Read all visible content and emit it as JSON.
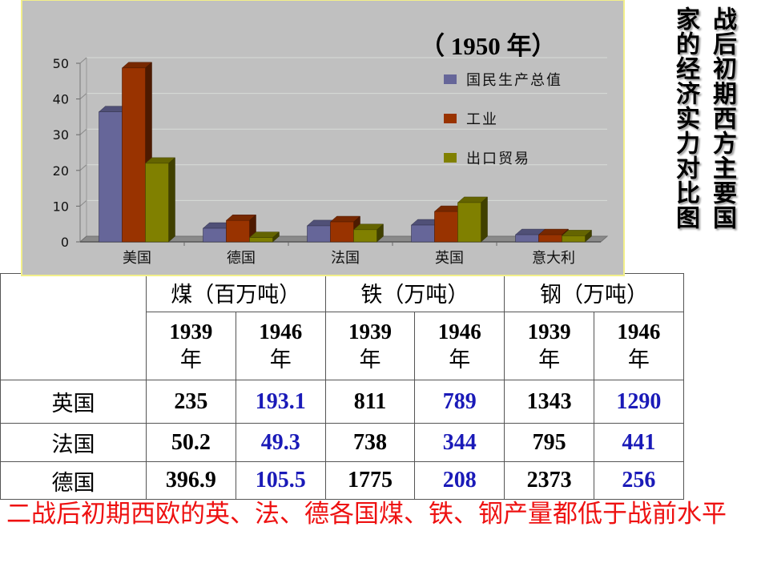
{
  "side_title": {
    "column_1": "战后初期西方主要国",
    "column_2": "家的经济实力对比图"
  },
  "chart_data": {
    "type": "bar",
    "style": "3d-clustered-column",
    "title": "战后初期西方主要国家的经济实力对比图",
    "subtitle": "（ 1950 年）",
    "categories": [
      "美国",
      "德国",
      "法国",
      "英国",
      "意大利"
    ],
    "series": [
      {
        "name": "国民生产总值",
        "color": "#666699",
        "values": [
          36.4,
          3.8,
          4.5,
          4.7,
          2.0
        ]
      },
      {
        "name": "工业",
        "color": "#993300",
        "values": [
          48.7,
          6.0,
          5.6,
          8.5,
          2.0
        ]
      },
      {
        "name": "出口贸易",
        "color": "#808000",
        "values": [
          22.0,
          1.2,
          3.4,
          11.0,
          1.7
        ]
      }
    ],
    "xlabel": "",
    "ylabel": "",
    "ylim": [
      0,
      50
    ],
    "yticks": [
      0,
      10,
      20,
      30,
      40,
      50
    ],
    "grid": true,
    "legend_position": "right-top",
    "background": "#c0c0c0"
  },
  "table": {
    "corner": "",
    "groups": [
      "煤（百万吨）",
      "铁（万吨）",
      "钢（万吨）"
    ],
    "years": [
      {
        "year": "1939",
        "unit": "年"
      },
      {
        "year": "1946",
        "unit": "年"
      },
      {
        "year": "1939",
        "unit": "年"
      },
      {
        "year": "1946",
        "unit": "年"
      },
      {
        "year": "1939",
        "unit": "年"
      },
      {
        "year": "1946",
        "unit": "年"
      }
    ],
    "rows": [
      {
        "country": "英国",
        "values": [
          "235",
          "193.1",
          "811",
          "789",
          "1343",
          "1290"
        ]
      },
      {
        "country": "法国",
        "values": [
          "50.2",
          "49.3",
          "738",
          "344",
          "795",
          "441"
        ]
      },
      {
        "country": "德国",
        "values": [
          "396.9",
          "105.5",
          "1775",
          "208",
          "2373",
          "256"
        ]
      }
    ],
    "colors": {
      "value_1939": "#000000",
      "value_1946": "#1a1ab8"
    }
  },
  "conclusion": {
    "text": "二战后初期西欧的英、法、德各国煤、铁、钢产量都低于战前水平",
    "color": "#ee1111"
  }
}
